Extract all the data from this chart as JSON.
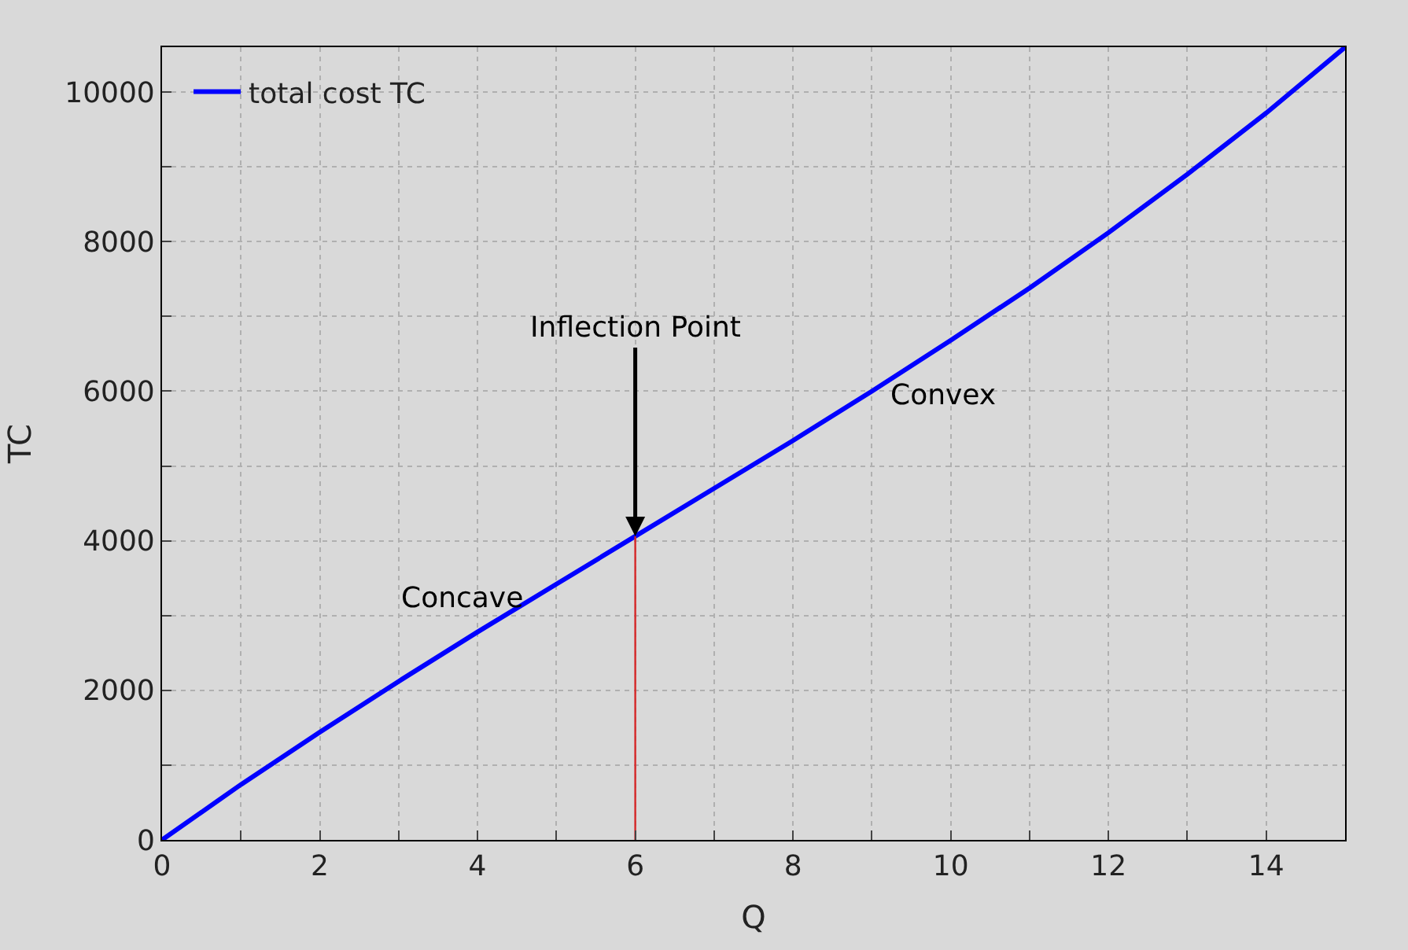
{
  "chart_data": {
    "type": "line",
    "xlabel": "Q",
    "ylabel": "TC",
    "x": [
      0,
      1,
      2,
      3,
      4,
      5,
      6,
      7,
      8,
      9,
      10,
      11,
      12,
      13,
      14,
      15
    ],
    "series": [
      {
        "name": "total cost TC",
        "color": "#0000ff",
        "values": [
          0,
          740,
          1440,
          2120,
          2780,
          3420,
          4060,
          4700,
          5340,
          6000,
          6680,
          7380,
          8120,
          8900,
          9720,
          10600
        ]
      },
      {
        "color": "#d62728",
        "x": [
          6,
          6
        ],
        "values": [
          0,
          4060
        ]
      }
    ],
    "xlim": [
      0,
      15
    ],
    "ylim": [
      0,
      10600
    ],
    "xticks": [
      0,
      {
        "value": 1,
        "label": null
      },
      2,
      {
        "value": 3,
        "label": null
      },
      4,
      {
        "value": 5,
        "label": null
      },
      6,
      {
        "value": 7,
        "label": null
      },
      8,
      {
        "value": 9,
        "label": null
      },
      10,
      {
        "value": 11,
        "label": null
      },
      12,
      {
        "value": 13,
        "label": null
      },
      14,
      {
        "value": 15,
        "label": null
      }
    ],
    "yticks": [
      0,
      {
        "value": 1000,
        "label": null
      },
      2000,
      {
        "value": 3000,
        "label": null
      },
      4000,
      {
        "value": 5000,
        "label": null
      },
      6000,
      {
        "value": 7000,
        "label": null
      },
      8000,
      {
        "value": 9000,
        "label": null
      },
      10000
    ],
    "grid": true,
    "legend": "top left",
    "line_style": "solid",
    "annotations": [
      {
        "text": "Inflection Point",
        "x": 6,
        "y": 4060
      },
      "Concave",
      "Convex"
    ]
  }
}
